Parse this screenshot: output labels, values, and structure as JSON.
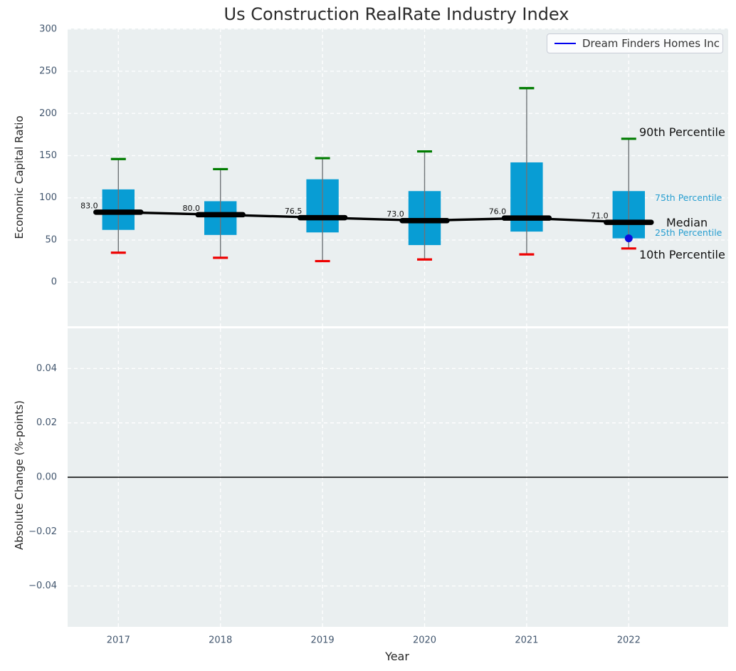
{
  "title": "Us Construction RealRate Industry Index",
  "legend": {
    "label": "Dream Finders Homes Inc"
  },
  "colors": {
    "figure_bg": "#ffffff",
    "plot_bg": "#eaeff0",
    "grid": "#ffffff",
    "box_fill": "#089dd4",
    "whisker_line": "#6f7477",
    "cap_top_green": "#007c00",
    "cap_bottom_red": "#ee0000",
    "median_line": "#000000",
    "company_point": "#0b0bdc",
    "legend_line": "#0000ee",
    "percentile_text": "#279ed0",
    "tick_text": "#42566e",
    "title_text": "#2b2b2b",
    "zero_line": "#000000"
  },
  "chart_data": [
    {
      "type": "boxplot",
      "title": "Us Construction RealRate Industry Index",
      "ylabel": "Economic Capital Ratio",
      "categories": [
        "2017",
        "2018",
        "2019",
        "2020",
        "2021",
        "2022"
      ],
      "ylim": [
        -54,
        301
      ],
      "yticks": [
        {
          "v": 0,
          "label": "0"
        },
        {
          "v": 50,
          "label": "50"
        },
        {
          "v": 100,
          "label": "100"
        },
        {
          "v": 150,
          "label": "150"
        },
        {
          "v": 200,
          "label": "200"
        },
        {
          "v": 250,
          "label": "250"
        },
        {
          "v": 300,
          "label": "300"
        }
      ],
      "grid": true,
      "legend_position": "upper right",
      "series": [
        {
          "name": "10th Percentile",
          "values": [
            35,
            29,
            25,
            27,
            33,
            40
          ]
        },
        {
          "name": "25th Percentile",
          "values": [
            62,
            56,
            59,
            44,
            60,
            52
          ]
        },
        {
          "name": "Median",
          "values": [
            83.0,
            80.0,
            76.5,
            73.0,
            76.0,
            71.0
          ]
        },
        {
          "name": "75th Percentile",
          "values": [
            110,
            96,
            122,
            108,
            142,
            108
          ]
        },
        {
          "name": "90th Percentile",
          "values": [
            146,
            134,
            147,
            155,
            230,
            170
          ]
        }
      ],
      "median_labels": [
        "83.0",
        "80.0",
        "76.5",
        "73.0",
        "76.0",
        "71.0"
      ],
      "company_series": {
        "name": "Dream Finders Homes Inc",
        "points": [
          {
            "x": "2022",
            "y": 52
          }
        ]
      },
      "annotations": [
        {
          "text": "90th Percentile",
          "style": "large"
        },
        {
          "text": "75th Percentile",
          "style": "small-blue"
        },
        {
          "text": "Median",
          "style": "large"
        },
        {
          "text": "25th Percentile",
          "style": "small-blue"
        },
        {
          "text": "10th Percentile",
          "style": "large"
        }
      ]
    },
    {
      "type": "line",
      "ylabel": "Absolute Change (%-points)",
      "xlabel": "Year",
      "categories": [
        "2017",
        "2018",
        "2019",
        "2020",
        "2021",
        "2022"
      ],
      "ylim": [
        -0.055,
        0.0545
      ],
      "yticks": [
        {
          "v": 0.04,
          "label": "0.04"
        },
        {
          "v": 0.02,
          "label": "0.02"
        },
        {
          "v": 0.0,
          "label": "0.00"
        },
        {
          "v": -0.02,
          "label": "−0.02"
        },
        {
          "v": -0.04,
          "label": "−0.04"
        }
      ],
      "grid": true,
      "zero_line": true,
      "series": []
    }
  ]
}
